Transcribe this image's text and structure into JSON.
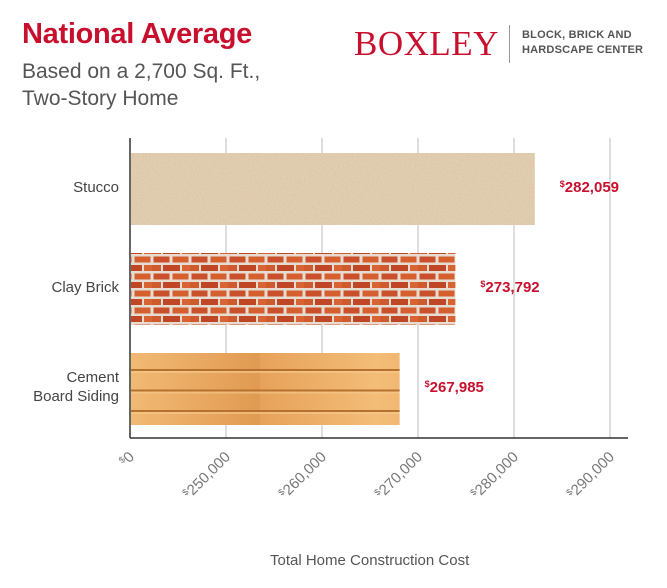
{
  "header": {
    "title": "National Average",
    "subtitle_line1": "Based on a 2,700 Sq. Ft.,",
    "subtitle_line2": "Two-Story Home"
  },
  "brand": {
    "logo": "BOXLEY",
    "tagline_line1": "BLOCK, BRICK AND",
    "tagline_line2": "HARDSCAPE CENTER",
    "accent_color": "#c8102e"
  },
  "chart_data": {
    "type": "bar",
    "orientation": "horizontal",
    "categories": [
      "Stucco",
      "Clay Brick",
      "Cement Board Siding"
    ],
    "category_labels": [
      [
        "Stucco"
      ],
      [
        "Clay Brick"
      ],
      [
        "Cement",
        "Board Siding"
      ]
    ],
    "values": [
      282059,
      273792,
      267985
    ],
    "value_labels": [
      "282,059",
      "273,792",
      "267,985"
    ],
    "currency_symbol": "$",
    "xlabel": "Total Home Construction Cost",
    "x_ticks": [
      "0",
      "250,000",
      "260,000",
      "270,000",
      "280,000",
      "290,000"
    ],
    "x_tick_values": [
      240000,
      250000,
      260000,
      270000,
      280000,
      290000
    ],
    "xlim": [
      240000,
      290000
    ],
    "grid": true,
    "bar_textures": [
      "stucco",
      "brick",
      "wood-siding"
    ]
  }
}
